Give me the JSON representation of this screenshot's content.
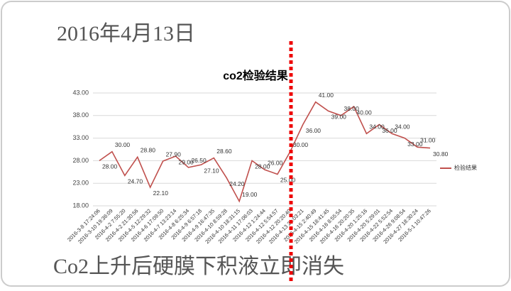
{
  "header": {
    "title": "2016年4月13日"
  },
  "footer": {
    "text": "Co2上升后硬膜下积液立即消失"
  },
  "chart_data": {
    "type": "line",
    "title": "co2检验结果",
    "categories": [
      "2016-3-8 17:24:06",
      "2016-3-10 19:36:09",
      "2016-4-2 7:55:20",
      "2016-4-2 21:30:56",
      "2016-4-5 12:29:32",
      "2016-4-6 17:09:50",
      "2016-4-7 13:23:14",
      "2016-4-8 6:25:34",
      "2016-4-9 6:57:18",
      "2016-4-9 16:47:35",
      "2016-4-10 8:59:28",
      "2016-4-10 18:31:15",
      "2016-4-11 17:06:03",
      "2016-4-12 1:24:44",
      "2016-4-12 5:54:57",
      "2016-4-12 20:20:40",
      "2016-4-13 21:03:21",
      "2016-4-15 2:40:49",
      "2016-4-15 18:41:45",
      "2016-4-16 8:55:54",
      "2016-4-16 20:20:35",
      "2016-4-20 1:25:16",
      "2016-4-20 5:29:01",
      "2016-4-22 5:52:54",
      "2016-4-26 9:08:54",
      "2016-4-27 18:30:24",
      "2016-5-1 10:47:26"
    ],
    "series": [
      {
        "name": "检验结果",
        "color": "#c0504d",
        "values": [
          28,
          30,
          24.7,
          28.8,
          22.1,
          27.9,
          29,
          26.5,
          27.1,
          28.6,
          24.2,
          19,
          28,
          26,
          25,
          30,
          36,
          41,
          39,
          38,
          40,
          34,
          36,
          34,
          33,
          31,
          30.8
        ],
        "value_labels": [
          "28.00",
          "30.00",
          "24.70",
          "28.80",
          "22.10",
          "27.90",
          "29.00",
          "26.50",
          "27.10",
          "28.60",
          "24.20",
          "19.00",
          "28.00",
          "26.00",
          "25.00",
          "30.00",
          "36.00",
          "41.00",
          "39.00",
          "38.00",
          "40.00",
          "34.00",
          "36.00",
          "34.00",
          "33.00",
          "31.00",
          "30.80"
        ]
      }
    ],
    "ylim": [
      18,
      43
    ],
    "yticks": [
      {
        "value": 18,
        "label": "18.00"
      },
      {
        "value": 23,
        "label": "23.00"
      },
      {
        "value": 28,
        "label": "28.00"
      },
      {
        "value": 33,
        "label": "33.00"
      },
      {
        "value": 38,
        "label": "38.00"
      },
      {
        "value": 43,
        "label": "43.00"
      }
    ],
    "grid": true,
    "legend": "right"
  }
}
